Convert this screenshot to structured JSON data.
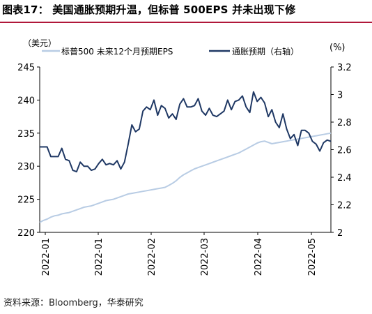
{
  "title": "图表17： 美国通胀预期升温，但标普 500EPS 并未出现下修",
  "source": "资料来源：Bloomberg，华泰研究",
  "chart_data": {
    "type": "line",
    "left_unit": "（美元）",
    "right_unit": "(%)",
    "left_axis": {
      "min": 220,
      "max": 245,
      "ticks": [
        220,
        225,
        230,
        235,
        240,
        245
      ]
    },
    "right_axis": {
      "min": 2.0,
      "max": 3.2,
      "ticks": [
        "2",
        "2.2",
        "2.4",
        "2.6",
        "2.8",
        "3",
        "3.2"
      ]
    },
    "x_tick_labels": [
      "2022-01",
      "2022-01",
      "2022-02",
      "2022-03",
      "2022-04",
      "2022-05"
    ],
    "legend": {
      "placement": "top"
    },
    "series": [
      {
        "name": "标普500 未来12个月预期EPS",
        "axis": "left",
        "color": "#b8cce4",
        "values": [
          221.5,
          221.8,
          222.0,
          222.3,
          222.5,
          222.6,
          222.8,
          222.9,
          223.0,
          223.2,
          223.4,
          223.6,
          223.8,
          223.9,
          224.0,
          224.2,
          224.4,
          224.6,
          224.8,
          224.9,
          225.0,
          225.2,
          225.4,
          225.6,
          225.8,
          225.9,
          226.0,
          226.1,
          226.2,
          226.3,
          226.4,
          226.5,
          226.6,
          226.7,
          226.8,
          227.1,
          227.4,
          227.8,
          228.3,
          228.7,
          229.0,
          229.3,
          229.6,
          229.8,
          230.0,
          230.2,
          230.4,
          230.6,
          230.8,
          231.0,
          231.2,
          231.4,
          231.6,
          231.8,
          232.0,
          232.3,
          232.6,
          232.9,
          233.2,
          233.5,
          233.7,
          233.8,
          233.6,
          233.4,
          233.5,
          233.6,
          233.7,
          233.8,
          233.9,
          234.0,
          234.1,
          234.2,
          234.3,
          234.4,
          234.5,
          234.6,
          234.7,
          234.8,
          234.9,
          235.0
        ]
      },
      {
        "name": "通胀预期（右轴）",
        "axis": "right",
        "color": "#1f3864",
        "values": [
          2.62,
          2.62,
          2.62,
          2.55,
          2.55,
          2.55,
          2.61,
          2.53,
          2.52,
          2.45,
          2.44,
          2.51,
          2.48,
          2.48,
          2.45,
          2.46,
          2.5,
          2.53,
          2.49,
          2.5,
          2.49,
          2.52,
          2.46,
          2.51,
          2.64,
          2.78,
          2.73,
          2.75,
          2.88,
          2.91,
          2.89,
          2.96,
          2.85,
          2.92,
          2.9,
          2.83,
          2.86,
          2.82,
          2.93,
          2.97,
          2.91,
          2.91,
          2.92,
          2.97,
          2.88,
          2.85,
          2.9,
          2.85,
          2.84,
          2.86,
          2.88,
          2.96,
          2.89,
          2.95,
          2.96,
          2.99,
          2.91,
          2.87,
          3.02,
          2.95,
          2.98,
          2.94,
          2.84,
          2.89,
          2.8,
          2.76,
          2.86,
          2.75,
          2.68,
          2.71,
          2.63,
          2.74,
          2.74,
          2.72,
          2.66,
          2.64,
          2.59,
          2.65,
          2.67,
          2.66
        ]
      }
    ]
  }
}
